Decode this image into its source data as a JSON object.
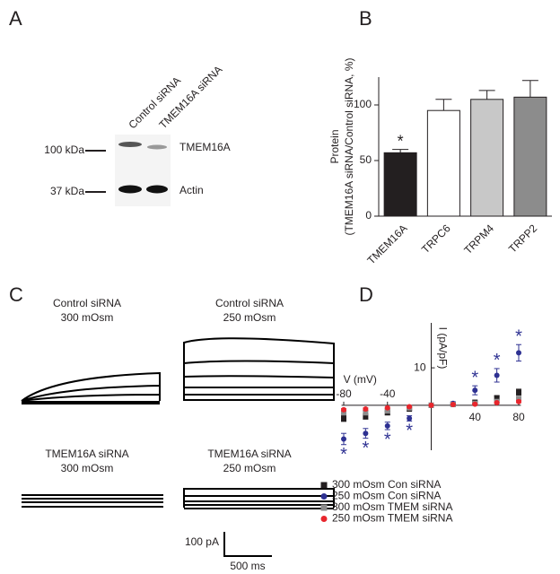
{
  "panels": {
    "A": {
      "label": "A",
      "lanes": [
        "Control siRNA",
        "TMEM16A siRNA"
      ],
      "markers": [
        "100 kDa",
        "37 kDa"
      ],
      "bands": [
        "TMEM16A",
        "Actin"
      ]
    },
    "C": {
      "label": "C",
      "traces": [
        {
          "title": "Control  siRNA",
          "subtitle": "300 mOsm"
        },
        {
          "title": "Control siRNA",
          "subtitle": "250 mOsm"
        },
        {
          "title": "TMEM16A siRNA",
          "subtitle": "300 mOsm"
        },
        {
          "title": "TMEM16A siRNA",
          "subtitle": "250 mOsm"
        }
      ],
      "scale": [
        "100 pA",
        "500 ms"
      ]
    }
  },
  "chart_data": [
    {
      "type": "bar",
      "panel": "B",
      "ylabel": [
        "Protein",
        "(TMEM16A siRNA/Control siRNA, %)"
      ],
      "categories": [
        "TMEM16A",
        "TRPC6",
        "TRPM4",
        "TRPP2"
      ],
      "values": [
        57,
        95,
        105,
        107
      ],
      "errors": [
        3,
        10,
        8,
        15
      ],
      "colors": [
        "#231f20",
        "#ffffff",
        "#c8c8c8",
        "#8c8c8c"
      ],
      "markers": [
        "*",
        null,
        null,
        null
      ],
      "ylim": [
        0,
        125
      ],
      "yticks": [
        0,
        50,
        100
      ]
    },
    {
      "type": "scatter",
      "panel": "D",
      "xlabel": "V (mV)",
      "ylabel": "I (pA/pF)",
      "x": [
        -80,
        -60,
        -40,
        -20,
        0,
        20,
        40,
        60,
        80
      ],
      "xlim": [
        -82,
        82
      ],
      "xticks": [
        -80,
        -40,
        40,
        80
      ],
      "ylim": [
        -12,
        22
      ],
      "yticks": [
        10
      ],
      "series": [
        {
          "name": "300 mOsm Con siRNA",
          "color": "#231f20",
          "shape": "square",
          "values": [
            -3.5,
            -3,
            -2,
            -1,
            0,
            0.3,
            0.8,
            2,
            3.5
          ],
          "errors": [
            0.8,
            0.7,
            0.5,
            0.3,
            0.2,
            0.2,
            0.3,
            0.5,
            0.8
          ]
        },
        {
          "name": "250 mOsm Con siRNA",
          "color": "#2e3192",
          "shape": "circle",
          "values": [
            -9,
            -7.5,
            -5.5,
            -3.5,
            0,
            0.5,
            4,
            8,
            14
          ],
          "errors": [
            1.5,
            1.3,
            1,
            0.7,
            0.3,
            0.4,
            1.2,
            1.8,
            2.2
          ],
          "markers": [
            "*",
            "*",
            "*",
            "*",
            null,
            null,
            "*",
            "*",
            "*"
          ]
        },
        {
          "name": "300 mOsm TMEM siRNA",
          "color": "#8c8c8c",
          "shape": "square",
          "values": [
            -2,
            -2,
            -1.5,
            -0.7,
            0,
            0.2,
            0.5,
            1,
            1.8
          ],
          "errors": [
            0.5,
            0.5,
            0.4,
            0.3,
            0.2,
            0.2,
            0.2,
            0.3,
            0.4
          ]
        },
        {
          "name": "250 mOsm TMEM siRNA",
          "color": "#e8262d",
          "shape": "circle",
          "values": [
            -1.2,
            -1,
            -0.7,
            -0.4,
            0,
            0.2,
            0.3,
            0.7,
            1
          ],
          "errors": [
            0.3,
            0.3,
            0.2,
            0.2,
            0.1,
            0.1,
            0.1,
            0.2,
            0.3
          ]
        }
      ]
    }
  ]
}
